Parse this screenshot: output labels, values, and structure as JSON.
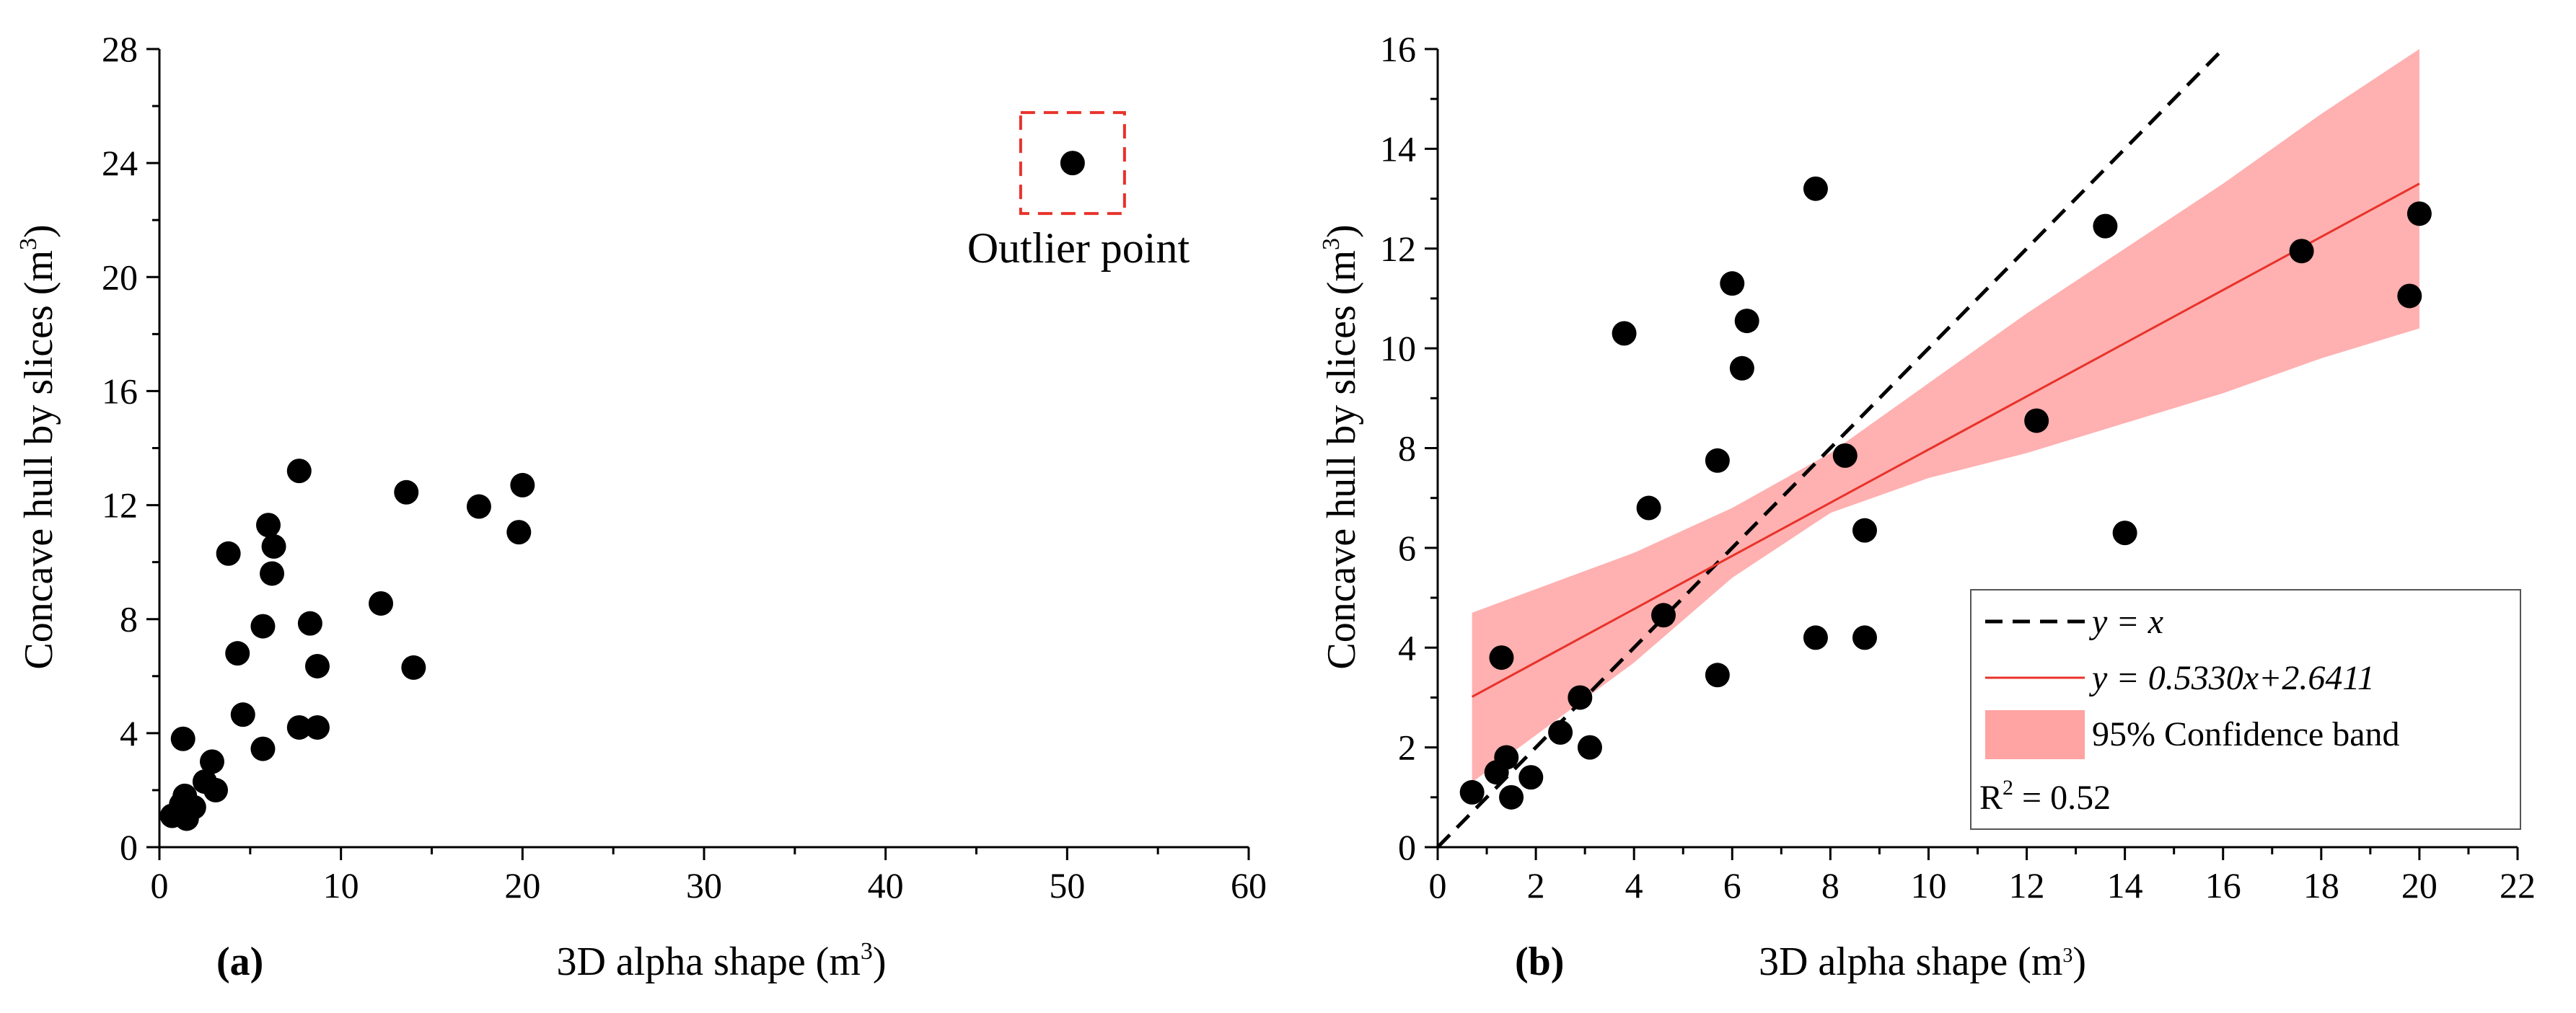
{
  "chart_data": [
    {
      "type": "scatter",
      "panel_label": "(a)",
      "xlabel": "3D alpha shape (m",
      "xlabel_sup": "3",
      "xlabel_close": ")",
      "ylabel": "Concave hull by slices (m",
      "ylabel_sup": "3",
      "ylabel_close": ")",
      "xlim": [
        0,
        60
      ],
      "ylim": [
        0,
        28
      ],
      "xticks": [
        0,
        10,
        20,
        30,
        40,
        50,
        60
      ],
      "yticks": [
        0,
        4,
        8,
        12,
        16,
        20,
        24,
        28
      ],
      "annotation": {
        "text": "Outlier point",
        "x": 50.3,
        "y": 24.0
      },
      "points": [
        {
          "x": 0.7,
          "y": 1.1
        },
        {
          "x": 1.2,
          "y": 1.5
        },
        {
          "x": 1.5,
          "y": 1.0
        },
        {
          "x": 1.4,
          "y": 1.8
        },
        {
          "x": 1.9,
          "y": 1.4
        },
        {
          "x": 1.3,
          "y": 3.8
        },
        {
          "x": 2.5,
          "y": 2.3
        },
        {
          "x": 2.9,
          "y": 3.0
        },
        {
          "x": 3.1,
          "y": 2.0
        },
        {
          "x": 3.8,
          "y": 10.3
        },
        {
          "x": 4.3,
          "y": 6.8
        },
        {
          "x": 4.6,
          "y": 4.65
        },
        {
          "x": 5.7,
          "y": 7.75
        },
        {
          "x": 5.7,
          "y": 3.45
        },
        {
          "x": 6.0,
          "y": 11.3
        },
        {
          "x": 6.3,
          "y": 10.55
        },
        {
          "x": 6.2,
          "y": 9.6
        },
        {
          "x": 7.7,
          "y": 13.2
        },
        {
          "x": 7.7,
          "y": 4.2
        },
        {
          "x": 8.3,
          "y": 7.85
        },
        {
          "x": 8.7,
          "y": 4.2
        },
        {
          "x": 8.7,
          "y": 6.35
        },
        {
          "x": 12.2,
          "y": 8.55
        },
        {
          "x": 13.6,
          "y": 12.45
        },
        {
          "x": 14.0,
          "y": 6.3
        },
        {
          "x": 17.6,
          "y": 11.95
        },
        {
          "x": 19.8,
          "y": 11.05
        },
        {
          "x": 20.0,
          "y": 12.7
        },
        {
          "x": 50.3,
          "y": 24.0
        }
      ]
    },
    {
      "type": "scatter",
      "panel_label": "(b)",
      "xlabel": "3D alpha shape (m",
      "xlabel_sup": "3",
      "xlabel_close": ")",
      "ylabel": "Concave hull by slices (m",
      "ylabel_sup": "3",
      "ylabel_close": ")",
      "xlim": [
        0,
        22
      ],
      "ylim": [
        0,
        16
      ],
      "xticks": [
        0,
        2,
        4,
        6,
        8,
        10,
        12,
        14,
        16,
        18,
        20,
        22
      ],
      "yticks": [
        0,
        2,
        4,
        6,
        8,
        10,
        12,
        14,
        16
      ],
      "identity_line": {
        "label": "y = x",
        "color": "#000000"
      },
      "fit_line": {
        "label": "y = 0.5330x+2.6411",
        "slope": 0.533,
        "intercept": 2.6411,
        "x_range": [
          0.7,
          20.0
        ],
        "color": "#e8322a"
      },
      "confidence_band": {
        "label": "95% Confidence band",
        "color": "#ff9a9a",
        "x": [
          0.7,
          4.0,
          6.0,
          8.0,
          10.0,
          12.0,
          14.0,
          16.0,
          18.0,
          20.0
        ],
        "lower": [
          1.3,
          3.7,
          5.4,
          6.7,
          7.4,
          7.9,
          8.5,
          9.1,
          9.8,
          10.4
        ],
        "upper": [
          4.7,
          5.9,
          6.8,
          7.9,
          9.3,
          10.7,
          12.0,
          13.3,
          14.7,
          16.0
        ]
      },
      "r_squared": {
        "label": "R",
        "sup": "2",
        "value_text": " = 0.52"
      },
      "points": [
        {
          "x": 0.7,
          "y": 1.1
        },
        {
          "x": 1.2,
          "y": 1.5
        },
        {
          "x": 1.5,
          "y": 1.0
        },
        {
          "x": 1.4,
          "y": 1.8
        },
        {
          "x": 1.9,
          "y": 1.4
        },
        {
          "x": 1.3,
          "y": 3.8
        },
        {
          "x": 2.5,
          "y": 2.3
        },
        {
          "x": 2.9,
          "y": 3.0
        },
        {
          "x": 3.1,
          "y": 2.0
        },
        {
          "x": 3.8,
          "y": 10.3
        },
        {
          "x": 4.3,
          "y": 6.8
        },
        {
          "x": 4.6,
          "y": 4.65
        },
        {
          "x": 5.7,
          "y": 7.75
        },
        {
          "x": 5.7,
          "y": 3.45
        },
        {
          "x": 6.0,
          "y": 11.3
        },
        {
          "x": 6.3,
          "y": 10.55
        },
        {
          "x": 6.2,
          "y": 9.6
        },
        {
          "x": 7.7,
          "y": 13.2
        },
        {
          "x": 7.7,
          "y": 4.2
        },
        {
          "x": 8.3,
          "y": 7.85
        },
        {
          "x": 8.7,
          "y": 4.2
        },
        {
          "x": 8.7,
          "y": 6.35
        },
        {
          "x": 12.2,
          "y": 8.55
        },
        {
          "x": 13.6,
          "y": 12.45
        },
        {
          "x": 14.0,
          "y": 6.3
        },
        {
          "x": 17.6,
          "y": 11.95
        },
        {
          "x": 19.8,
          "y": 11.05
        },
        {
          "x": 20.0,
          "y": 12.7
        }
      ]
    }
  ]
}
